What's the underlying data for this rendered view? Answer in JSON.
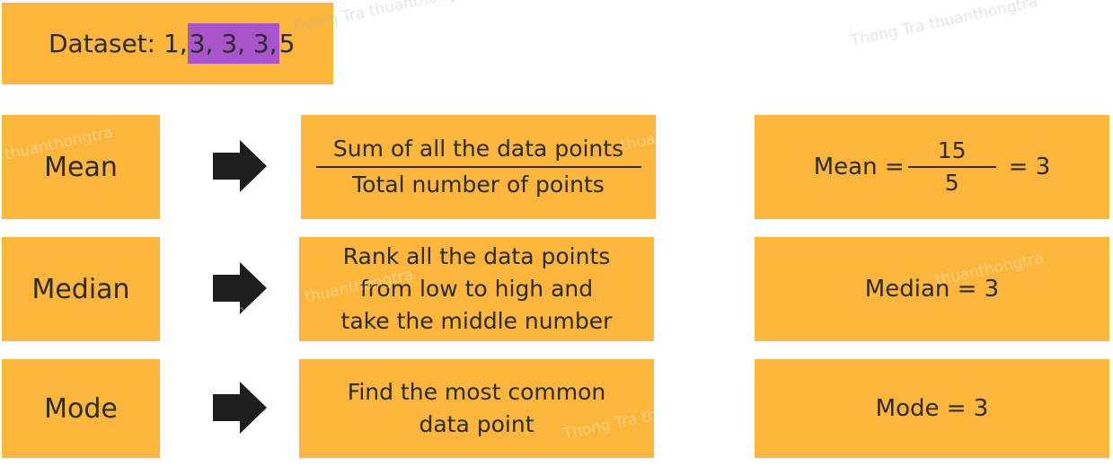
{
  "dataset": {
    "prefix": "Dataset: 1,",
    "highlight": " 3, 3, 3,",
    "suffix": " 5",
    "highlight_color": "#a855c9"
  },
  "box_color": "#fcb63c",
  "rows": [
    {
      "label": "Mean",
      "desc_numerator": "Sum of all the data points",
      "desc_denominator": "Total number of points",
      "result_lhs": "Mean =",
      "result_num": "15",
      "result_den": "5",
      "result_rhs": "= 3"
    },
    {
      "label": "Median",
      "desc_lines": [
        "Rank all the data points",
        "from low to high and",
        "take the middle number"
      ],
      "result": "Median = 3"
    },
    {
      "label": "Mode",
      "desc_lines": [
        "Find the most common",
        "data point"
      ],
      "result": "Mode = 3"
    }
  ],
  "arrow_icon": "right-arrow-icon",
  "watermarks": [
    "Thong Tra thuanthong",
    "Thong Tra thuanthongtra",
    "thuanthongtra",
    "thuanthongtra",
    "Thong Tra thuanthongtra",
    "thuanthongtra",
    "Thong Tra thuanthongtra"
  ]
}
